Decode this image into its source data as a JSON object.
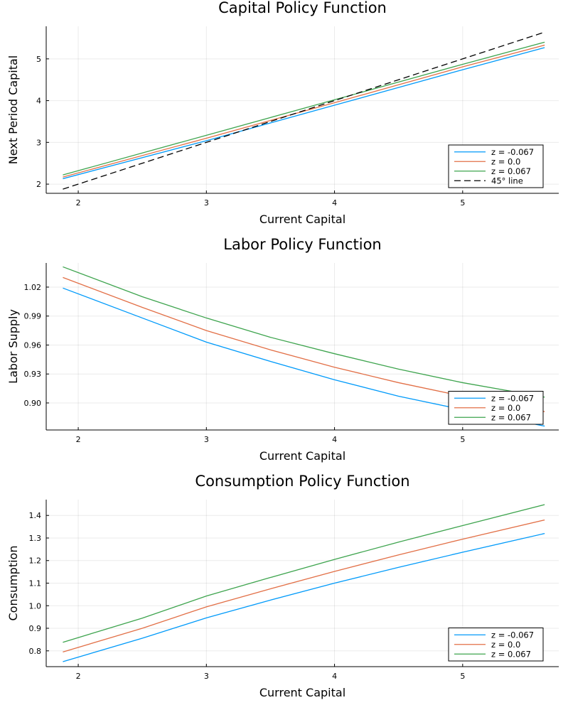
{
  "colors": {
    "series_blue": "#009AFA",
    "series_orange": "#E26F46",
    "series_green": "#3EA44E",
    "reference_black": "#000000"
  },
  "chart_data": [
    {
      "type": "line",
      "title": "Capital Policy Function",
      "xlabel": "Current Capital",
      "ylabel": "Next Period Capital",
      "xlim": [
        1.75,
        5.75
      ],
      "ylim": [
        1.78,
        5.78
      ],
      "xticks": [
        2,
        3,
        4,
        5
      ],
      "yticks": [
        2,
        3,
        4,
        5
      ],
      "grid": true,
      "legend_position": "bottom-right",
      "series": [
        {
          "name": "z = -0.067",
          "color": "#009AFA",
          "dash": "solid",
          "points": [
            [
              1.88,
              2.13
            ],
            [
              3.0,
              3.04
            ],
            [
              4.0,
              3.89
            ],
            [
              5.0,
              4.74
            ],
            [
              5.64,
              5.27
            ]
          ]
        },
        {
          "name": "z = 0.0",
          "color": "#E26F46",
          "dash": "solid",
          "points": [
            [
              1.88,
              2.17
            ],
            [
              3.0,
              3.1
            ],
            [
              4.0,
              3.95
            ],
            [
              5.0,
              4.81
            ],
            [
              5.64,
              5.33
            ]
          ]
        },
        {
          "name": "z = 0.067",
          "color": "#3EA44E",
          "dash": "solid",
          "points": [
            [
              1.88,
              2.22
            ],
            [
              3.0,
              3.17
            ],
            [
              4.0,
              4.02
            ],
            [
              5.0,
              4.87
            ],
            [
              5.64,
              5.4
            ]
          ]
        },
        {
          "name": "45° line",
          "color": "#000000",
          "dash": "dashed",
          "points": [
            [
              1.88,
              1.88
            ],
            [
              5.64,
              5.64
            ]
          ]
        }
      ]
    },
    {
      "type": "line",
      "title": "Labor Policy Function",
      "xlabel": "Current Capital",
      "ylabel": "Labor Supply",
      "xlim": [
        1.75,
        5.75
      ],
      "ylim": [
        0.872,
        1.045
      ],
      "xticks": [
        2,
        3,
        4,
        5
      ],
      "yticks": [
        0.9,
        0.93,
        0.96,
        0.99,
        1.02
      ],
      "ytick_labels": [
        "0.90",
        "0.93",
        "0.96",
        "0.99",
        "1.02"
      ],
      "grid": true,
      "legend_position": "bottom-right",
      "series": [
        {
          "name": "z = -0.067",
          "color": "#009AFA",
          "dash": "solid",
          "points": [
            [
              1.88,
              1.019
            ],
            [
              2.5,
              0.988
            ],
            [
              3.0,
              0.963
            ],
            [
              3.5,
              0.943
            ],
            [
              4.0,
              0.924
            ],
            [
              4.5,
              0.907
            ],
            [
              5.0,
              0.893
            ],
            [
              5.64,
              0.876
            ]
          ]
        },
        {
          "name": "z = 0.0",
          "color": "#E26F46",
          "dash": "solid",
          "points": [
            [
              1.88,
              1.03
            ],
            [
              2.5,
              0.999
            ],
            [
              3.0,
              0.975
            ],
            [
              3.5,
              0.955
            ],
            [
              4.0,
              0.937
            ],
            [
              4.5,
              0.921
            ],
            [
              5.0,
              0.907
            ],
            [
              5.64,
              0.891
            ]
          ]
        },
        {
          "name": "z = 0.067",
          "color": "#3EA44E",
          "dash": "solid",
          "points": [
            [
              1.88,
              1.041
            ],
            [
              2.5,
              1.01
            ],
            [
              3.0,
              0.988
            ],
            [
              3.5,
              0.968
            ],
            [
              4.0,
              0.951
            ],
            [
              4.5,
              0.935
            ],
            [
              5.0,
              0.921
            ],
            [
              5.64,
              0.906
            ]
          ]
        }
      ]
    },
    {
      "type": "line",
      "title": "Consumption Policy Function",
      "xlabel": "Current Capital",
      "ylabel": "Consumption",
      "xlim": [
        1.75,
        5.75
      ],
      "ylim": [
        0.73,
        1.47
      ],
      "xticks": [
        2,
        3,
        4,
        5
      ],
      "yticks": [
        0.8,
        0.9,
        1.0,
        1.1,
        1.2,
        1.3,
        1.4
      ],
      "ytick_labels": [
        "0.8",
        "0.9",
        "1.0",
        "1.1",
        "1.2",
        "1.3",
        "1.4"
      ],
      "grid": true,
      "legend_position": "bottom-right",
      "series": [
        {
          "name": "z = -0.067",
          "color": "#009AFA",
          "dash": "solid",
          "points": [
            [
              1.88,
              0.752
            ],
            [
              2.5,
              0.856
            ],
            [
              3.0,
              0.946
            ],
            [
              3.5,
              1.025
            ],
            [
              4.0,
              1.1
            ],
            [
              4.5,
              1.17
            ],
            [
              5.0,
              1.237
            ],
            [
              5.64,
              1.32
            ]
          ]
        },
        {
          "name": "z = 0.0",
          "color": "#E26F46",
          "dash": "solid",
          "points": [
            [
              1.88,
              0.795
            ],
            [
              2.5,
              0.9
            ],
            [
              3.0,
              0.995
            ],
            [
              3.5,
              1.075
            ],
            [
              4.0,
              1.152
            ],
            [
              4.5,
              1.225
            ],
            [
              5.0,
              1.295
            ],
            [
              5.64,
              1.38
            ]
          ]
        },
        {
          "name": "z = 0.067",
          "color": "#3EA44E",
          "dash": "solid",
          "points": [
            [
              1.88,
              0.838
            ],
            [
              2.5,
              0.945
            ],
            [
              3.0,
              1.043
            ],
            [
              3.5,
              1.125
            ],
            [
              4.0,
              1.205
            ],
            [
              4.5,
              1.282
            ],
            [
              5.0,
              1.355
            ],
            [
              5.64,
              1.448
            ]
          ]
        }
      ]
    }
  ]
}
